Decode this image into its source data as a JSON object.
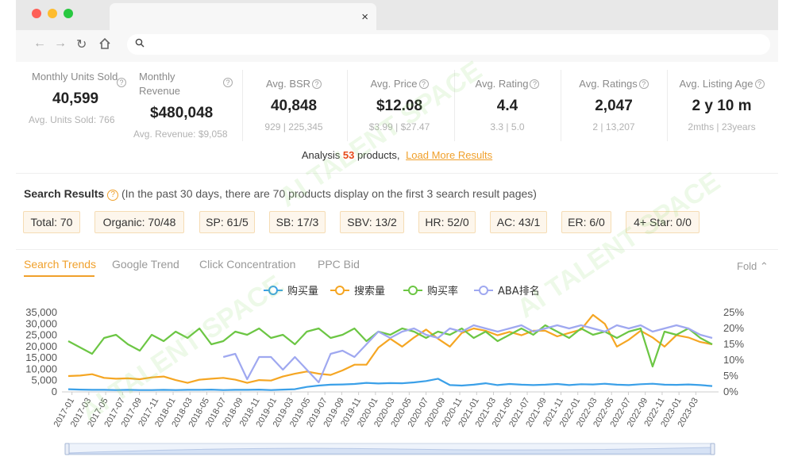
{
  "browser": {
    "dots": [
      "#fe5f57",
      "#febc2e",
      "#28c840"
    ],
    "tab_close": "×",
    "nav_icons": [
      "back-icon",
      "forward-icon",
      "reload-icon",
      "home-icon"
    ],
    "address_value": ""
  },
  "stats": [
    {
      "label": "Monthly Units Sold",
      "value": "40,599",
      "sub": "Avg. Units Sold: 766"
    },
    {
      "label": "Monthly Revenue",
      "value": "$480,048",
      "sub": "Avg. Revenue: $9,058"
    },
    {
      "label": "Avg. BSR",
      "value": "40,848",
      "range_a": "929",
      "range_b": "225,345"
    },
    {
      "label": "Avg. Price",
      "value": "$12.08",
      "range_a": "$3.99",
      "range_b": "$27.47"
    },
    {
      "label": "Avg. Rating",
      "value": "4.4",
      "range_a": "3.3",
      "range_b": "5.0"
    },
    {
      "label": "Avg. Ratings",
      "value": "2,047",
      "range_a": "2",
      "range_b": "13,207"
    },
    {
      "label": "Avg. Listing Age",
      "value": "2 y 10 m",
      "range_a": "2mths",
      "range_b": "23years"
    }
  ],
  "analysis": {
    "prefix": "Analysis",
    "count": "53",
    "suffix": "products,",
    "load_more": "Load More Results"
  },
  "search_results": {
    "title": "Search Results",
    "description": "(In the past 30 days, there are 70 products display on the first 3 search result pages)",
    "chips": [
      "Total: 70",
      "Organic: 70/48",
      "SP: 61/5",
      "SB: 17/3",
      "SBV: 13/2",
      "HR: 52/0",
      "AC: 43/1",
      "ER: 6/0",
      "4+ Star: 0/0"
    ]
  },
  "tabs": [
    "Search Trends",
    "Google Trend",
    "Click Concentration",
    "PPC Bid"
  ],
  "fold_label": "Fold",
  "watermark": "AI TALENT SPACE",
  "chart_data": {
    "type": "line",
    "legend": [
      "购买量",
      "搜索量",
      "购买率",
      "ABA排名"
    ],
    "colors": [
      "#3ba0e8",
      "#f5a623",
      "#6cc644",
      "#9fa8f0"
    ],
    "x_labels": [
      "2017-01",
      "2017-03",
      "2017-05",
      "2017-07",
      "2017-09",
      "2017-11",
      "2018-01",
      "2018-03",
      "2018-05",
      "2018-07",
      "2018-09",
      "2018-11",
      "2019-01",
      "2019-03",
      "2019-05",
      "2019-07",
      "2019-09",
      "2019-11",
      "2020-01",
      "2020-03",
      "2020-05",
      "2020-07",
      "2020-09",
      "2020-11",
      "2021-01",
      "2021-03",
      "2021-05",
      "2021-07",
      "2021-09",
      "2021-11",
      "2022-01",
      "2022-03",
      "2022-05",
      "2022-07",
      "2022-09",
      "2022-11",
      "2023-01",
      "2023-03"
    ],
    "y_left_ticks": [
      "0",
      "5,000",
      "10,000",
      "15,000",
      "20,000",
      "25,000",
      "30,000",
      "35,000"
    ],
    "y_left_max": 35000,
    "y_right_ticks": [
      "0%",
      "5%",
      "10%",
      "15%",
      "20%",
      "25%"
    ],
    "y_right_max": 25,
    "series": [
      {
        "name": "购买量",
        "axis": "left",
        "values": [
          1200,
          1000,
          900,
          900,
          800,
          900,
          800,
          800,
          900,
          800,
          900,
          900,
          1000,
          800,
          900,
          900,
          1000,
          800,
          1000,
          1200,
          2200,
          2800,
          3200,
          3300,
          3500,
          4000,
          3700,
          3900,
          3800,
          4200,
          4800,
          5800,
          3000,
          2800,
          3200,
          3800,
          3000,
          3500,
          3200,
          3000,
          3200,
          3500,
          3000,
          3400,
          3300,
          3600,
          3200,
          3000,
          3400,
          3600,
          3200,
          3100,
          3300,
          3000,
          2600
        ]
      },
      {
        "name": "搜索量",
        "axis": "left",
        "values": [
          7000,
          7200,
          7800,
          6200,
          5800,
          6000,
          5600,
          6400,
          6800,
          5200,
          4000,
          5400,
          5800,
          6200,
          5400,
          4000,
          5200,
          5000,
          6800,
          8000,
          9000,
          8000,
          7500,
          9500,
          12000,
          12000,
          19500,
          23500,
          20000,
          24000,
          27500,
          23500,
          20000,
          26000,
          28000,
          27000,
          25000,
          26500,
          25000,
          27000,
          27000,
          24500,
          26000,
          27500,
          34000,
          30000,
          20000,
          23000,
          27000,
          24000,
          20000,
          25000,
          24000,
          22000,
          21000
        ]
      },
      {
        "name": "购买率",
        "axis": "right",
        "values": [
          16,
          14,
          12,
          17,
          18,
          15,
          13,
          18,
          16,
          19,
          17,
          20,
          15,
          16,
          19,
          18,
          20,
          17,
          18,
          15,
          19,
          20,
          17,
          18,
          20,
          16,
          19,
          18,
          20,
          19,
          17,
          19,
          18,
          20,
          17,
          19,
          16,
          18,
          20,
          18,
          21,
          19,
          17,
          20,
          18,
          19,
          17,
          19,
          20,
          8,
          19,
          18,
          20,
          17,
          15
        ]
      },
      {
        "name": "ABA排名",
        "axis": "right",
        "values": [
          null,
          null,
          null,
          null,
          null,
          null,
          null,
          null,
          null,
          null,
          null,
          null,
          null,
          11,
          12,
          4,
          11,
          11,
          7,
          11,
          7,
          3,
          12,
          13,
          11,
          15,
          19,
          17,
          19,
          20,
          18,
          17,
          20,
          19,
          21,
          20,
          19,
          20,
          21,
          19,
          20,
          21,
          20,
          21,
          20,
          19,
          21,
          20,
          21,
          19,
          20,
          21,
          20,
          18,
          17
        ]
      }
    ]
  }
}
